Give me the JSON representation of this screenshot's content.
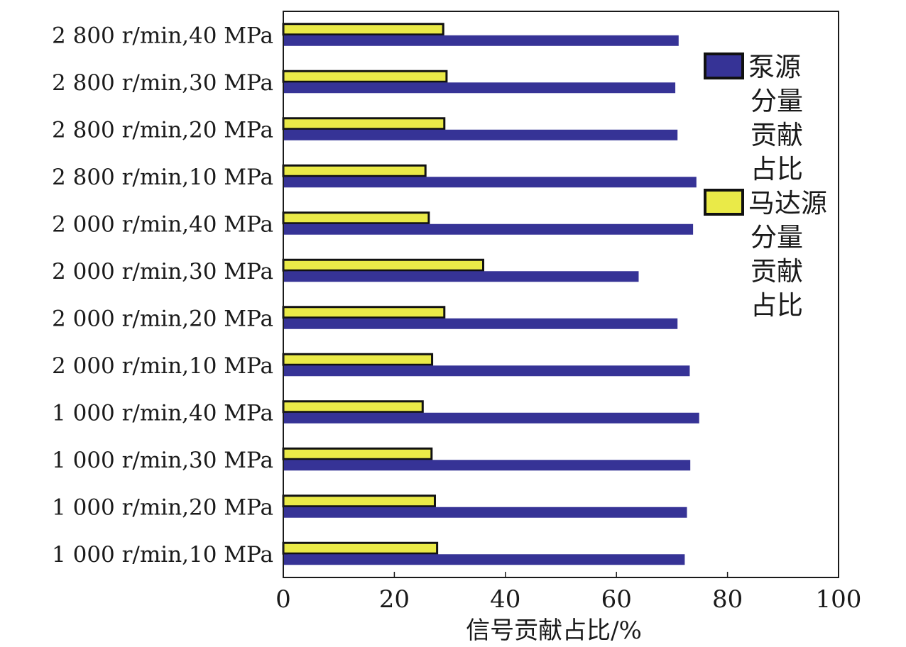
{
  "chart_data": {
    "type": "bar",
    "orientation": "horizontal",
    "categories": [
      "1 000 r/min,10 MPa",
      "1 000 r/min,20 MPa",
      "1 000 r/min,30 MPa",
      "1 000 r/min,40 MPa",
      "2 000 r/min,10 MPa",
      "2 000 r/min,20 MPa",
      "2 000 r/min,30 MPa",
      "2 000 r/min,40 MPa",
      "2 800 r/min,10 MPa",
      "2 800 r/min,20 MPa",
      "2 800 r/min,30 MPa",
      "2 800 r/min,40 MPa"
    ],
    "series": [
      {
        "name": "泵源分量贡献占比",
        "legend_lines": [
          "泵源",
          "分量",
          "贡献",
          "占比"
        ],
        "color": "#363396",
        "values": [
          72.3,
          72.7,
          73.3,
          74.9,
          73.2,
          71.0,
          64.0,
          73.8,
          74.4,
          71.0,
          70.6,
          71.2
        ]
      },
      {
        "name": "马达源分量贡献占比",
        "legend_lines": [
          "马达源",
          "分量",
          "贡献",
          "占比"
        ],
        "color": "#EAEA48",
        "values": [
          27.7,
          27.3,
          26.7,
          25.1,
          26.8,
          29.0,
          36.0,
          26.2,
          25.6,
          29.0,
          29.4,
          28.8
        ]
      }
    ],
    "xlabel": "信号贡献占比/%",
    "ylabel": "",
    "xlim": [
      0,
      100
    ],
    "xticks": [
      "0",
      "20",
      "40",
      "60",
      "80",
      "100"
    ],
    "grid": false,
    "legend_position": "top-right"
  }
}
